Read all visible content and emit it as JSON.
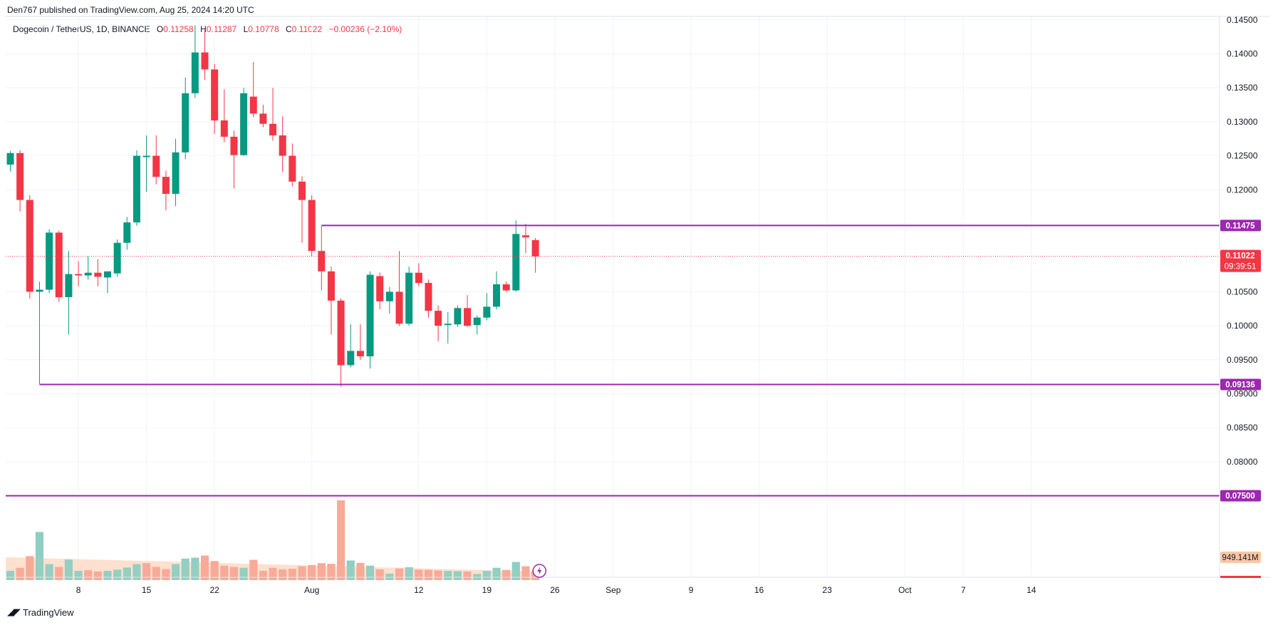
{
  "header": {
    "published": "Den767 published on TradingView.com, Aug 25, 2024 14:20 UTC",
    "symbol": "Dogecoin / TetherUS, 1D, BINANCE",
    "ohlc": {
      "o_label": "O",
      "o": "0.11258",
      "h_label": "H",
      "h": "0.11287",
      "l_label": "L",
      "l": "0.10778",
      "c_label": "C",
      "c": "0.11022",
      "change": "−0.00236 (−2.10%)"
    }
  },
  "footer": {
    "brand": "TradingView"
  },
  "colors": {
    "up": "#089981",
    "down": "#f23645",
    "vol_up": "#8fcec3",
    "vol_down": "#f7a898",
    "level_line": "#9c27b0",
    "volume_ma": "#fbc7a6",
    "grid": "#f0f3fa",
    "axis_text": "#131722"
  },
  "chart_data": {
    "type": "candlestick",
    "y_axis": {
      "ticks": [
        "0.14500",
        "0.14000",
        "0.13500",
        "0.13000",
        "0.12500",
        "0.12000",
        "0.10500",
        "0.10000",
        "0.09500",
        "0.09000",
        "0.08500",
        "0.08000"
      ],
      "range": [
        0.0715,
        0.1455
      ]
    },
    "x_axis": {
      "ticks": [
        {
          "label": "8",
          "day": 8
        },
        {
          "label": "15",
          "day": 15
        },
        {
          "label": "22",
          "day": 22
        },
        {
          "label": "Aug",
          "day": 32
        },
        {
          "label": "12",
          "day": 43
        },
        {
          "label": "19",
          "day": 50
        },
        {
          "label": "26",
          "day": 57
        },
        {
          "label": "Sep",
          "day": 63
        },
        {
          "label": "9",
          "day": 71
        },
        {
          "label": "16",
          "day": 78
        },
        {
          "label": "23",
          "day": 85
        },
        {
          "label": "Oct",
          "day": 93
        },
        {
          "label": "7",
          "day": 99
        },
        {
          "label": "14",
          "day": 106
        }
      ]
    },
    "horizontal_levels": [
      {
        "value": 0.11475,
        "label": "0.11475",
        "from_day": 33
      },
      {
        "value": 0.09136,
        "label": "0.09136",
        "from_day": 4
      },
      {
        "value": 0.075,
        "label": "0.07500",
        "from_day": 0
      }
    ],
    "last_price": {
      "value": 0.11022,
      "label": "0.11022",
      "countdown": "09:39:51"
    },
    "volume_label": "949.141M",
    "candles": [
      {
        "d": "Jul 1",
        "o": 0.1237,
        "h": 0.1257,
        "l": 0.1227,
        "c": 0.1254
      },
      {
        "d": "Jul 2",
        "o": 0.1254,
        "h": 0.1258,
        "l": 0.1168,
        "c": 0.1185
      },
      {
        "d": "Jul 3",
        "o": 0.1185,
        "h": 0.1192,
        "l": 0.104,
        "c": 0.105
      },
      {
        "d": "Jul 4",
        "o": 0.105,
        "h": 0.1065,
        "l": 0.0914,
        "c": 0.1053
      },
      {
        "d": "Jul 5",
        "o": 0.1053,
        "h": 0.1142,
        "l": 0.1048,
        "c": 0.1137
      },
      {
        "d": "Jul 6",
        "o": 0.1137,
        "h": 0.114,
        "l": 0.1035,
        "c": 0.1042
      },
      {
        "d": "Jul 7",
        "o": 0.1042,
        "h": 0.111,
        "l": 0.0987,
        "c": 0.1076
      },
      {
        "d": "Jul 8",
        "o": 0.1076,
        "h": 0.1095,
        "l": 0.1058,
        "c": 0.1074
      },
      {
        "d": "Jul 9",
        "o": 0.1074,
        "h": 0.1102,
        "l": 0.1068,
        "c": 0.1078
      },
      {
        "d": "Jul 10",
        "o": 0.1078,
        "h": 0.1098,
        "l": 0.1058,
        "c": 0.1072
      },
      {
        "d": "Jul 11",
        "o": 0.1071,
        "h": 0.108,
        "l": 0.1048,
        "c": 0.108
      },
      {
        "d": "Jul 12",
        "o": 0.1077,
        "h": 0.1127,
        "l": 0.1072,
        "c": 0.1122
      },
      {
        "d": "Jul 13",
        "o": 0.1122,
        "h": 0.116,
        "l": 0.1112,
        "c": 0.1152
      },
      {
        "d": "Jul 14",
        "o": 0.1152,
        "h": 0.1258,
        "l": 0.1147,
        "c": 0.125
      },
      {
        "d": "Jul 15",
        "o": 0.1248,
        "h": 0.128,
        "l": 0.1197,
        "c": 0.125
      },
      {
        "d": "Jul 16",
        "o": 0.125,
        "h": 0.128,
        "l": 0.1208,
        "c": 0.1219
      },
      {
        "d": "Jul 17",
        "o": 0.1219,
        "h": 0.1228,
        "l": 0.117,
        "c": 0.1194
      },
      {
        "d": "Jul 18",
        "o": 0.1194,
        "h": 0.1275,
        "l": 0.1176,
        "c": 0.1255
      },
      {
        "d": "Jul 19",
        "o": 0.1255,
        "h": 0.1365,
        "l": 0.1245,
        "c": 0.1342
      },
      {
        "d": "Jul 20",
        "o": 0.1342,
        "h": 0.1442,
        "l": 0.1335,
        "c": 0.1402
      },
      {
        "d": "Jul 21",
        "o": 0.1402,
        "h": 0.1435,
        "l": 0.1362,
        "c": 0.1377
      },
      {
        "d": "Jul 22",
        "o": 0.1377,
        "h": 0.1385,
        "l": 0.1282,
        "c": 0.1302
      },
      {
        "d": "Jul 23",
        "o": 0.1302,
        "h": 0.1348,
        "l": 0.127,
        "c": 0.1278
      },
      {
        "d": "Jul 24",
        "o": 0.1278,
        "h": 0.1287,
        "l": 0.1202,
        "c": 0.1251
      },
      {
        "d": "Jul 25",
        "o": 0.1251,
        "h": 0.135,
        "l": 0.125,
        "c": 0.1342
      },
      {
        "d": "Jul 26",
        "o": 0.1337,
        "h": 0.1388,
        "l": 0.1307,
        "c": 0.1312
      },
      {
        "d": "Jul 27",
        "o": 0.1312,
        "h": 0.1325,
        "l": 0.1292,
        "c": 0.1297
      },
      {
        "d": "Jul 28",
        "o": 0.1297,
        "h": 0.135,
        "l": 0.1272,
        "c": 0.128
      },
      {
        "d": "Jul 29",
        "o": 0.128,
        "h": 0.1308,
        "l": 0.1226,
        "c": 0.125
      },
      {
        "d": "Jul 30",
        "o": 0.125,
        "h": 0.1268,
        "l": 0.1205,
        "c": 0.1212
      },
      {
        "d": "Jul 31",
        "o": 0.1212,
        "h": 0.122,
        "l": 0.1122,
        "c": 0.1185
      },
      {
        "d": "Aug 1",
        "o": 0.1185,
        "h": 0.1192,
        "l": 0.1102,
        "c": 0.111
      },
      {
        "d": "Aug 2",
        "o": 0.111,
        "h": 0.1147,
        "l": 0.1052,
        "c": 0.108
      },
      {
        "d": "Aug 3",
        "o": 0.108,
        "h": 0.1087,
        "l": 0.0987,
        "c": 0.1037
      },
      {
        "d": "Aug 4",
        "o": 0.1037,
        "h": 0.104,
        "l": 0.091,
        "c": 0.0942
      },
      {
        "d": "Aug 5",
        "o": 0.0942,
        "h": 0.1002,
        "l": 0.0939,
        "c": 0.0963
      },
      {
        "d": "Aug 6",
        "o": 0.0963,
        "h": 0.1002,
        "l": 0.095,
        "c": 0.0955
      },
      {
        "d": "Aug 7",
        "o": 0.0955,
        "h": 0.108,
        "l": 0.0937,
        "c": 0.1075
      },
      {
        "d": "Aug 8",
        "o": 0.1073,
        "h": 0.1078,
        "l": 0.1024,
        "c": 0.1036
      },
      {
        "d": "Aug 9",
        "o": 0.1036,
        "h": 0.1057,
        "l": 0.1018,
        "c": 0.105
      },
      {
        "d": "Aug 10",
        "o": 0.105,
        "h": 0.111,
        "l": 0.1,
        "c": 0.1003
      },
      {
        "d": "Aug 11",
        "o": 0.1003,
        "h": 0.1087,
        "l": 0.1,
        "c": 0.1078
      },
      {
        "d": "Aug 12",
        "o": 0.1078,
        "h": 0.1092,
        "l": 0.1058,
        "c": 0.1063
      },
      {
        "d": "Aug 13",
        "o": 0.1063,
        "h": 0.1068,
        "l": 0.1012,
        "c": 0.1022
      },
      {
        "d": "Aug 14",
        "o": 0.1022,
        "h": 0.103,
        "l": 0.0977,
        "c": 0.1
      },
      {
        "d": "Aug 15",
        "o": 0.1001,
        "h": 0.102,
        "l": 0.0974,
        "c": 0.1003
      },
      {
        "d": "Aug 16",
        "o": 0.1002,
        "h": 0.103,
        "l": 0.0998,
        "c": 0.1026
      },
      {
        "d": "Aug 17",
        "o": 0.1026,
        "h": 0.1045,
        "l": 0.0998,
        "c": 0.1
      },
      {
        "d": "Aug 18",
        "o": 0.1001,
        "h": 0.1015,
        "l": 0.0987,
        "c": 0.1012
      },
      {
        "d": "Aug 19",
        "o": 0.1012,
        "h": 0.1048,
        "l": 0.1008,
        "c": 0.1028
      },
      {
        "d": "Aug 20",
        "o": 0.1028,
        "h": 0.108,
        "l": 0.1024,
        "c": 0.1061
      },
      {
        "d": "Aug 21",
        "o": 0.1061,
        "h": 0.1065,
        "l": 0.105,
        "c": 0.1052
      },
      {
        "d": "Aug 22",
        "o": 0.1052,
        "h": 0.1155,
        "l": 0.105,
        "c": 0.1135
      },
      {
        "d": "Aug 23",
        "o": 0.1133,
        "h": 0.115,
        "l": 0.1107,
        "c": 0.113
      },
      {
        "d": "Aug 24",
        "o": 0.1126,
        "h": 0.1129,
        "l": 0.1078,
        "c": 0.1102
      }
    ],
    "volume": [
      {
        "d": "Jul 1",
        "v": 0.3,
        "up": true
      },
      {
        "d": "Jul 2",
        "v": 0.4,
        "up": false
      },
      {
        "d": "Jul 3",
        "v": 0.78,
        "up": false
      },
      {
        "d": "Jul 4",
        "v": 1.57,
        "up": true
      },
      {
        "d": "Jul 5",
        "v": 0.52,
        "up": true
      },
      {
        "d": "Jul 6",
        "v": 0.43,
        "up": false
      },
      {
        "d": "Jul 7",
        "v": 0.67,
        "up": true
      },
      {
        "d": "Jul 8",
        "v": 0.3,
        "up": true
      },
      {
        "d": "Jul 9",
        "v": 0.32,
        "up": false
      },
      {
        "d": "Jul 10",
        "v": 0.28,
        "up": false
      },
      {
        "d": "Jul 11",
        "v": 0.3,
        "up": true
      },
      {
        "d": "Jul 12",
        "v": 0.34,
        "up": true
      },
      {
        "d": "Jul 13",
        "v": 0.41,
        "up": true
      },
      {
        "d": "Jul 14",
        "v": 0.52,
        "up": true
      },
      {
        "d": "Jul 15",
        "v": 0.55,
        "up": false
      },
      {
        "d": "Jul 16",
        "v": 0.43,
        "up": false
      },
      {
        "d": "Jul 17",
        "v": 0.36,
        "up": false
      },
      {
        "d": "Jul 18",
        "v": 0.52,
        "up": true
      },
      {
        "d": "Jul 19",
        "v": 0.7,
        "up": true
      },
      {
        "d": "Jul 20",
        "v": 0.73,
        "up": true
      },
      {
        "d": "Jul 21",
        "v": 0.8,
        "up": false
      },
      {
        "d": "Jul 22",
        "v": 0.62,
        "up": false
      },
      {
        "d": "Jul 23",
        "v": 0.47,
        "up": false
      },
      {
        "d": "Jul 24",
        "v": 0.43,
        "up": false
      },
      {
        "d": "Jul 25",
        "v": 0.4,
        "up": true
      },
      {
        "d": "Jul 26",
        "v": 0.66,
        "up": false
      },
      {
        "d": "Jul 27",
        "v": 0.3,
        "up": false
      },
      {
        "d": "Jul 28",
        "v": 0.4,
        "up": false
      },
      {
        "d": "Jul 29",
        "v": 0.35,
        "up": false
      },
      {
        "d": "Jul 30",
        "v": 0.37,
        "up": false
      },
      {
        "d": "Jul 31",
        "v": 0.45,
        "up": false
      },
      {
        "d": "Aug 1",
        "v": 0.49,
        "up": false
      },
      {
        "d": "Aug 2",
        "v": 0.55,
        "up": false
      },
      {
        "d": "Aug 3",
        "v": 0.53,
        "up": false
      },
      {
        "d": "Aug 4",
        "v": 2.6,
        "up": false
      },
      {
        "d": "Aug 5",
        "v": 0.64,
        "up": true
      },
      {
        "d": "Aug 6",
        "v": 0.56,
        "up": false
      },
      {
        "d": "Aug 7",
        "v": 0.47,
        "up": true
      },
      {
        "d": "Aug 8",
        "v": 0.35,
        "up": false
      },
      {
        "d": "Aug 9",
        "v": 0.21,
        "up": true
      },
      {
        "d": "Aug 10",
        "v": 0.38,
        "up": false
      },
      {
        "d": "Aug 11",
        "v": 0.42,
        "up": true
      },
      {
        "d": "Aug 12",
        "v": 0.34,
        "up": false
      },
      {
        "d": "Aug 13",
        "v": 0.33,
        "up": false
      },
      {
        "d": "Aug 14",
        "v": 0.31,
        "up": false
      },
      {
        "d": "Aug 15",
        "v": 0.3,
        "up": true
      },
      {
        "d": "Aug 16",
        "v": 0.29,
        "up": true
      },
      {
        "d": "Aug 17",
        "v": 0.28,
        "up": false
      },
      {
        "d": "Aug 18",
        "v": 0.2,
        "up": true
      },
      {
        "d": "Aug 19",
        "v": 0.3,
        "up": true
      },
      {
        "d": "Aug 20",
        "v": 0.4,
        "up": true
      },
      {
        "d": "Aug 21",
        "v": 0.33,
        "up": false
      },
      {
        "d": "Aug 22",
        "v": 0.59,
        "up": true
      },
      {
        "d": "Aug 23",
        "v": 0.45,
        "up": false
      },
      {
        "d": "Aug 24",
        "v": 0.3,
        "up": false
      }
    ]
  }
}
